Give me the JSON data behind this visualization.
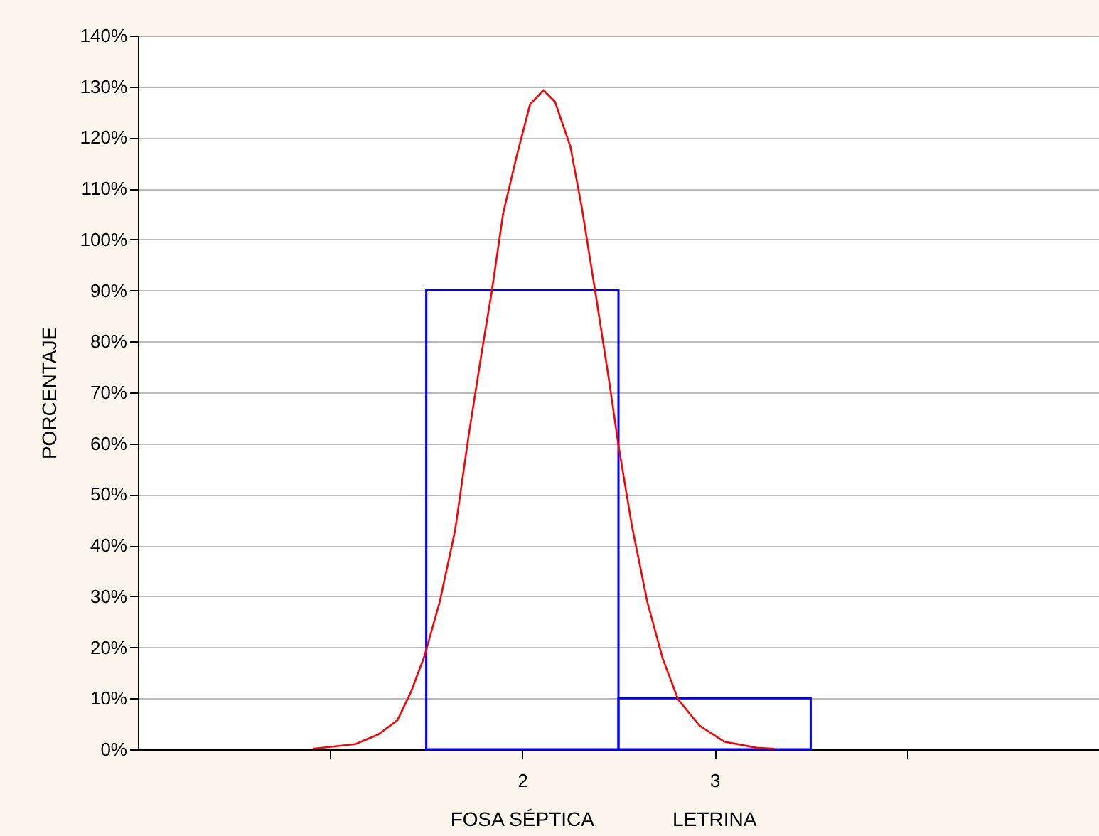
{
  "chart_data": {
    "type": "histogram",
    "bins": [
      1.5,
      2.5,
      3.5
    ],
    "values": [
      90,
      10
    ],
    "color": "#0000ff",
    "series": [
      {
        "type": "line",
        "color": "#ff0000",
        "x": [
          0.91,
          1.13,
          1.25,
          1.35,
          1.42,
          1.49,
          1.57,
          1.65,
          1.72,
          1.79,
          1.84,
          1.9,
          1.97,
          2.04,
          2.11,
          2.17,
          2.25,
          2.31,
          2.38,
          2.45,
          2.5,
          2.57,
          2.65,
          2.73,
          2.81,
          2.92,
          3.05,
          3.22,
          3.31
        ],
        "values": [
          0.1,
          1.0,
          2.9,
          5.7,
          11.2,
          18.2,
          28.9,
          42.9,
          61.4,
          78.2,
          89.6,
          105.1,
          116.3,
          126.5,
          129.3,
          127.0,
          118.2,
          106.1,
          89.6,
          72.6,
          59.6,
          43.8,
          28.9,
          17.8,
          9.8,
          4.7,
          1.5,
          0.3,
          0.1
        ]
      }
    ],
    "ylabel": "PORCENTAJE",
    "xlim": [
      0,
      5
    ],
    "xticks": [
      {
        "value": 1,
        "label": null
      },
      2,
      3,
      {
        "value": 4,
        "label": null
      }
    ],
    "ylim": [
      0,
      140
    ],
    "yticks": [
      {
        "value": 0,
        "label": "0%"
      },
      {
        "value": 10,
        "label": "10%"
      },
      {
        "value": 20,
        "label": "20%"
      },
      {
        "value": 30,
        "label": "30%"
      },
      {
        "value": 40,
        "label": "40%"
      },
      {
        "value": 50,
        "label": "50%"
      },
      {
        "value": 60,
        "label": "60%"
      },
      {
        "value": 70,
        "label": "70%"
      },
      {
        "value": 80,
        "label": "80%"
      },
      {
        "value": 90,
        "label": "90%"
      },
      {
        "value": 100,
        "label": "100%"
      },
      {
        "value": 110,
        "label": "110%"
      },
      {
        "value": 120,
        "label": "120%"
      },
      {
        "value": 130,
        "label": "130%"
      },
      {
        "value": 140,
        "label": "140%"
      }
    ],
    "grid": "y",
    "annotations": [
      "FOSA SÉPTICA",
      "LETRINA"
    ]
  }
}
